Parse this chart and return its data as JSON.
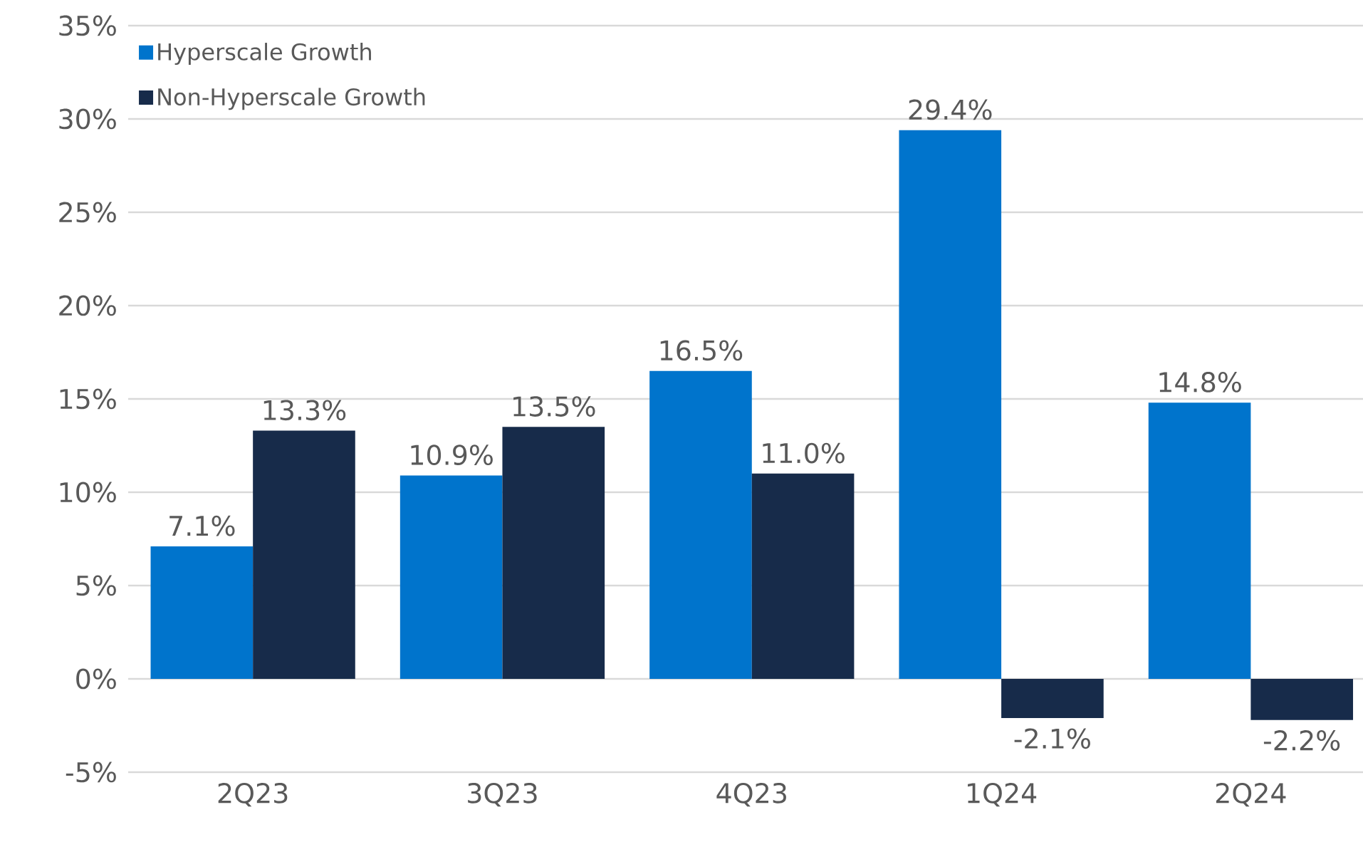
{
  "chart_data": {
    "type": "bar",
    "categories": [
      "2Q23",
      "3Q23",
      "4Q23",
      "1Q24",
      "2Q24"
    ],
    "series": [
      {
        "name": "Hyperscale Growth",
        "color": "#0074cc",
        "values": [
          7.1,
          10.9,
          16.5,
          29.4,
          14.8
        ],
        "value_labels": [
          "7.1%",
          "10.9%",
          "16.5%",
          "29.4%",
          "14.8%"
        ]
      },
      {
        "name": "Non-Hyperscale Growth",
        "color": "#172b4a",
        "values": [
          13.3,
          13.5,
          11.0,
          -2.1,
          -2.2
        ],
        "value_labels": [
          "13.3%",
          "13.5%",
          "11.0%",
          "-2.1%",
          "-2.2%"
        ]
      }
    ],
    "ylim": [
      -5,
      35
    ],
    "yticks": [
      {
        "value": -5,
        "label": "-5%"
      },
      {
        "value": 0,
        "label": "0%"
      },
      {
        "value": 5,
        "label": "5%"
      },
      {
        "value": 10,
        "label": "10%"
      },
      {
        "value": 15,
        "label": "15%"
      },
      {
        "value": 20,
        "label": "20%"
      },
      {
        "value": 25,
        "label": "25%"
      },
      {
        "value": 30,
        "label": "30%"
      },
      {
        "value": 35,
        "label": "35%"
      }
    ],
    "grid": "y",
    "legend": "top left"
  }
}
